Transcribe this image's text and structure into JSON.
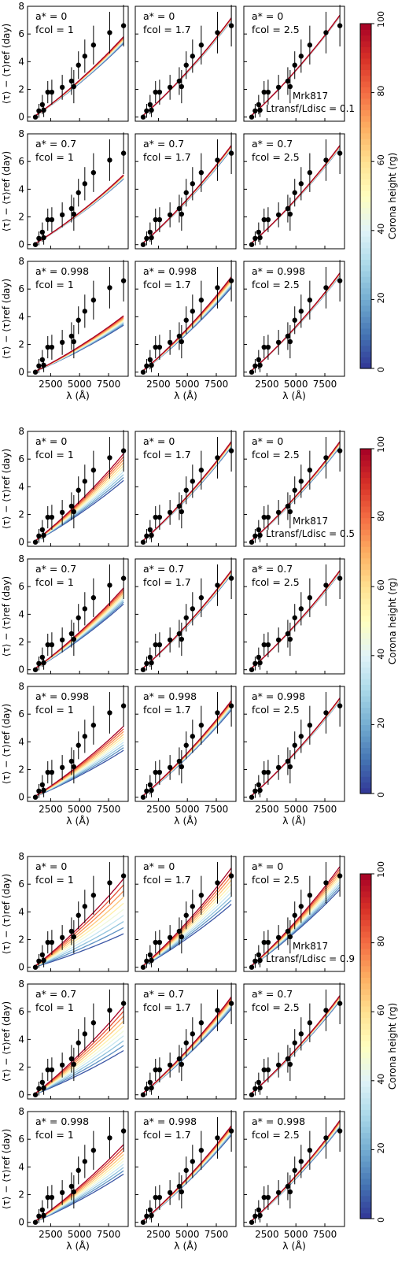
{
  "figure": {
    "ylabel": "⟨τ⟩ − ⟨τ⟩ref (day)",
    "xlabel": "λ (Å)",
    "x_ticks": [
      2500,
      5000,
      7500
    ],
    "y_ticks": [
      0,
      2,
      4,
      6,
      8
    ],
    "colorbar": {
      "label": "Corona height (rg)",
      "ticks": [
        0,
        20,
        40,
        60,
        80,
        100
      ],
      "colormap": "RdYlBu_r",
      "low_color": "#313695",
      "high_color": "#a50026"
    },
    "panel_labels": {
      "spins": [
        "a* = 0",
        "a* = 0.7",
        "a* = 0.998"
      ],
      "fcols": [
        "fcol = 1",
        "fcol = 1.7",
        "fcol = 2.5"
      ]
    },
    "groups": [
      {
        "source": "Mrk817",
        "ratio_label": "Ltransf/Ldisc = 0.1"
      },
      {
        "source": "Mrk817",
        "ratio_label": "Ltransf/Ldisc = 0.5"
      },
      {
        "source": "Mrk817",
        "ratio_label": "Ltransf/Ldisc = 0.9"
      }
    ]
  },
  "chart_data": {
    "type": "line",
    "title": "",
    "xlabel": "λ (Å)",
    "ylabel": "⟨τ⟩ − ⟨τ⟩ref (day)",
    "xlim": [
      500,
      9200
    ],
    "ylim": [
      -0.3,
      8
    ],
    "observed": {
      "x": [
        1180,
        1480,
        1780,
        1900,
        2250,
        2600,
        3500,
        4300,
        4500,
        4900,
        5450,
        6200,
        7600,
        8800
      ],
      "y": [
        0.0,
        0.45,
        0.9,
        0.5,
        1.8,
        1.8,
        2.15,
        2.6,
        2.2,
        3.75,
        4.4,
        5.2,
        6.1,
        6.6
      ],
      "yerr": [
        0.15,
        0.5,
        0.7,
        0.5,
        0.8,
        0.9,
        0.9,
        1.0,
        1.2,
        1.0,
        1.2,
        1.4,
        1.5,
        1.5
      ]
    },
    "model_lines_per_panel": 10,
    "corona_heights": [
      5,
      15,
      25,
      35,
      45,
      55,
      65,
      75,
      85,
      100
    ],
    "panels": [
      {
        "group": 0,
        "spin": "a* = 0",
        "fcol": "fcol = 1",
        "y_end_top": 6.0,
        "y_end_bottom": 5.5
      },
      {
        "group": 0,
        "spin": "a* = 0",
        "fcol": "fcol = 1.7",
        "y_end_top": 7.4,
        "y_end_bottom": 7.2
      },
      {
        "group": 0,
        "spin": "a* = 0",
        "fcol": "fcol = 2.5",
        "y_end_top": 7.6,
        "y_end_bottom": 7.5
      },
      {
        "group": 0,
        "spin": "a* = 0.7",
        "fcol": "fcol = 1",
        "y_end_top": 5.2,
        "y_end_bottom": 4.9
      },
      {
        "group": 0,
        "spin": "a* = 0.7",
        "fcol": "fcol = 1.7",
        "y_end_top": 7.4,
        "y_end_bottom": 7.1
      },
      {
        "group": 0,
        "spin": "a* = 0.7",
        "fcol": "fcol = 2.5",
        "y_end_top": 7.4,
        "y_end_bottom": 7.2
      },
      {
        "group": 0,
        "spin": "a* = 0.998",
        "fcol": "fcol = 1",
        "y_end_top": 4.2,
        "y_end_bottom": 3.5
      },
      {
        "group": 0,
        "spin": "a* = 0.998",
        "fcol": "fcol = 1.7",
        "y_end_top": 7.1,
        "y_end_bottom": 6.3
      },
      {
        "group": 0,
        "spin": "a* = 0.998",
        "fcol": "fcol = 2.5",
        "y_end_top": 7.4,
        "y_end_bottom": 7.2
      },
      {
        "group": 1,
        "spin": "a* = 0",
        "fcol": "fcol = 1",
        "y_end_top": 6.6,
        "y_end_bottom": 4.6
      },
      {
        "group": 1,
        "spin": "a* = 0",
        "fcol": "fcol = 1.7",
        "y_end_top": 7.5,
        "y_end_bottom": 7.1
      },
      {
        "group": 1,
        "spin": "a* = 0",
        "fcol": "fcol = 2.5",
        "y_end_top": 7.5,
        "y_end_bottom": 7.1
      },
      {
        "group": 1,
        "spin": "a* = 0.7",
        "fcol": "fcol = 1",
        "y_end_top": 6.1,
        "y_end_bottom": 4.9
      },
      {
        "group": 1,
        "spin": "a* = 0.7",
        "fcol": "fcol = 1.7",
        "y_end_top": 7.4,
        "y_end_bottom": 7.1
      },
      {
        "group": 1,
        "spin": "a* = 0.7",
        "fcol": "fcol = 2.5",
        "y_end_top": 7.4,
        "y_end_bottom": 7.2
      },
      {
        "group": 1,
        "spin": "a* = 0.998",
        "fcol": "fcol = 1",
        "y_end_top": 5.3,
        "y_end_bottom": 3.5
      },
      {
        "group": 1,
        "spin": "a* = 0.998",
        "fcol": "fcol = 1.7",
        "y_end_top": 7.2,
        "y_end_bottom": 6.5
      },
      {
        "group": 1,
        "spin": "a* = 0.998",
        "fcol": "fcol = 2.5",
        "y_end_top": 7.4,
        "y_end_bottom": 7.2
      },
      {
        "group": 2,
        "spin": "a* = 0",
        "fcol": "fcol = 1",
        "y_end_top": 6.6,
        "y_end_bottom": 2.5
      },
      {
        "group": 2,
        "spin": "a* = 0",
        "fcol": "fcol = 1.7",
        "y_end_top": 7.4,
        "y_end_bottom": 4.7
      },
      {
        "group": 2,
        "spin": "a* = 0",
        "fcol": "fcol = 2.5",
        "y_end_top": 7.5,
        "y_end_bottom": 5.8
      },
      {
        "group": 2,
        "spin": "a* = 0.7",
        "fcol": "fcol = 1",
        "y_end_top": 6.6,
        "y_end_bottom": 3.3
      },
      {
        "group": 2,
        "spin": "a* = 0.7",
        "fcol": "fcol = 1.7",
        "y_end_top": 7.3,
        "y_end_bottom": 6.4
      },
      {
        "group": 2,
        "spin": "a* = 0.7",
        "fcol": "fcol = 2.5",
        "y_end_top": 7.4,
        "y_end_bottom": 7.0
      },
      {
        "group": 2,
        "spin": "a* = 0.998",
        "fcol": "fcol = 1",
        "y_end_top": 5.8,
        "y_end_bottom": 3.6
      },
      {
        "group": 2,
        "spin": "a* = 0.998",
        "fcol": "fcol = 1.7",
        "y_end_top": 7.2,
        "y_end_bottom": 6.5
      },
      {
        "group": 2,
        "spin": "a* = 0.998",
        "fcol": "fcol = 2.5",
        "y_end_top": 7.6,
        "y_end_bottom": 7.1
      }
    ]
  }
}
